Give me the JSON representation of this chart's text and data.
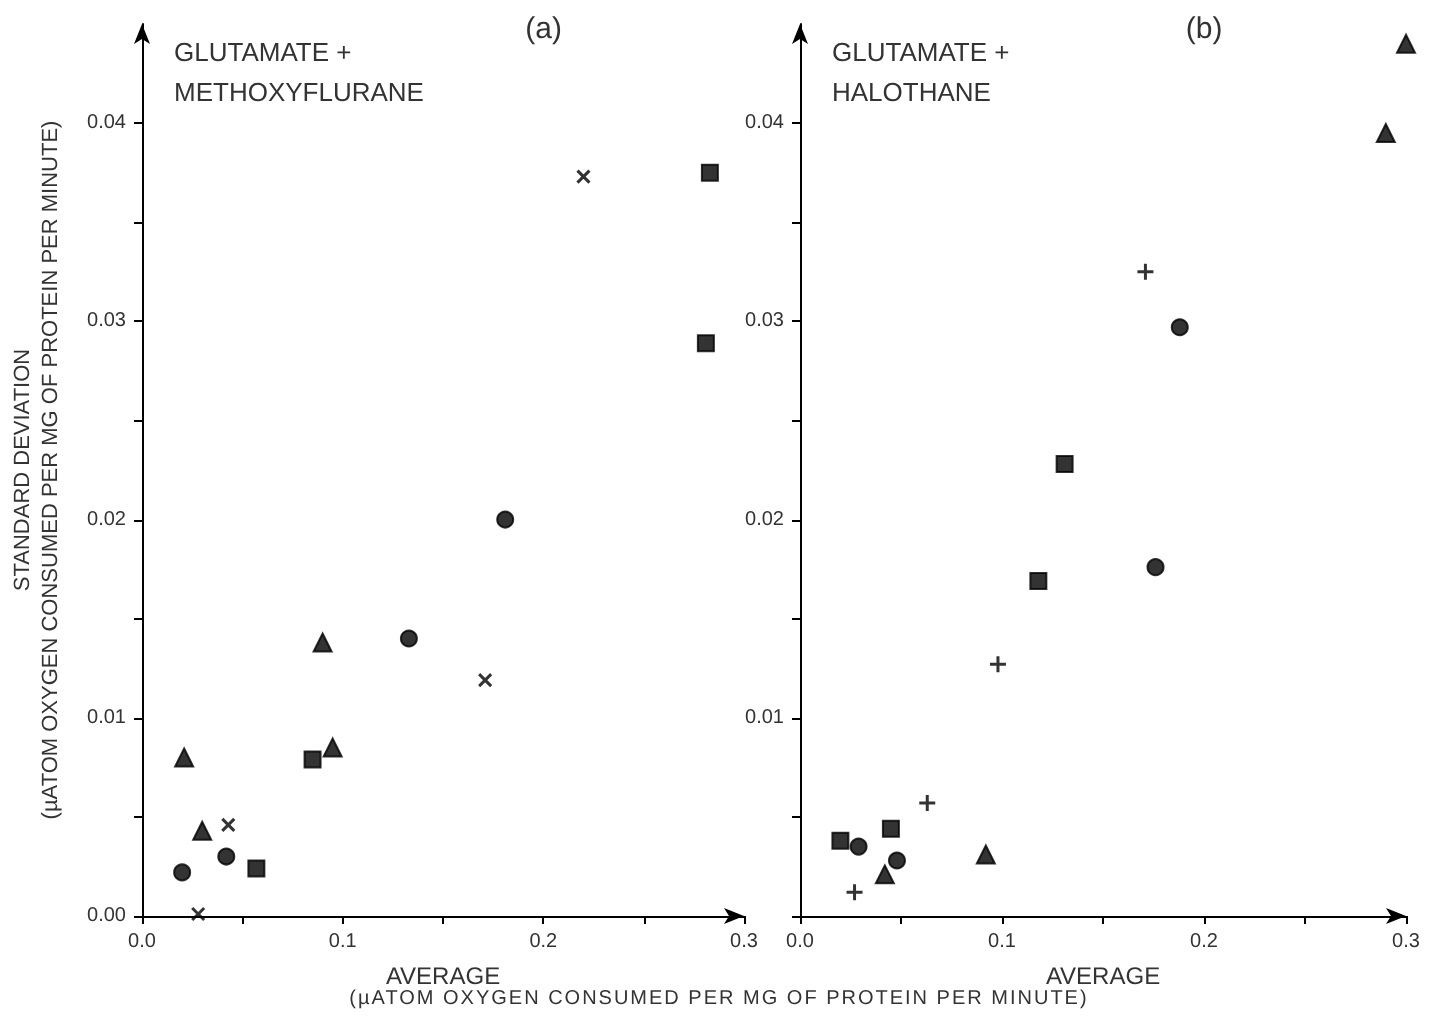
{
  "chart_data": [
    {
      "type": "scatter",
      "title": "(a)",
      "xlabel": "AVERAGE",
      "ylabel": "STANDARD DEVIATION\n(µATOM OXYGEN CONSUMED PER MG OF PROTEIN PER MINUTE)",
      "annotations": [
        "GLUTAMATE +\nMETHOXYFLURANE",
        "(µATOM OXYGEN CONSUMED PER MG OF PROTEIN PER MINUTE)"
      ],
      "xlim": [
        0,
        0.3
      ],
      "ylim": [
        0,
        0.045
      ],
      "grid": false,
      "xticks": [
        {
          "value": 0,
          "label": "0.0"
        },
        {
          "value": 0.05,
          "label": null
        },
        {
          "value": 0.1,
          "label": "0.1"
        },
        {
          "value": 0.15,
          "label": null
        },
        {
          "value": 0.2,
          "label": "0.2"
        },
        {
          "value": 0.25,
          "label": null
        },
        {
          "value": 0.3,
          "label": "0.3"
        }
      ],
      "yticks": [
        {
          "value": 0,
          "label": "0.00"
        },
        {
          "value": 0.005,
          "label": null
        },
        {
          "value": 0.01,
          "label": "0.01"
        },
        {
          "value": 0.015,
          "label": null
        },
        {
          "value": 0.02,
          "label": "0.02"
        },
        {
          "value": 0.025,
          "label": null
        },
        {
          "value": 0.03,
          "label": "0.03"
        },
        {
          "value": 0.035,
          "label": null
        },
        {
          "value": 0.04,
          "label": "0.04"
        }
      ],
      "series": [
        {
          "color": "#000000",
          "marker": "circle",
          "x": [
            0.02,
            0.042,
            0.133,
            0.181
          ],
          "values": [
            0.0022,
            0.003,
            0.014,
            0.02
          ]
        },
        {
          "color": "#000000",
          "marker": "triangle",
          "x": [
            0.021,
            0.03,
            0.09,
            0.095
          ],
          "values": [
            0.008,
            0.0043,
            0.0138,
            0.0085
          ]
        },
        {
          "color": "#000000",
          "marker": "square",
          "x": [
            0.057,
            0.085,
            0.283,
            0.281
          ],
          "values": [
            0.0024,
            0.0079,
            0.0375,
            0.0289
          ]
        },
        {
          "color": "#000000",
          "marker": "cross",
          "x": [
            0.028,
            0.043,
            0.171,
            0.22
          ],
          "values": [
            0.0001,
            0.0046,
            0.0119,
            0.0373
          ]
        }
      ]
    },
    {
      "type": "scatter",
      "title": "(b)",
      "xlabel": "AVERAGE",
      "annotations": [
        "GLUTAMATE +\nHALOTHANE"
      ],
      "xlim": [
        0,
        0.3
      ],
      "ylim": [
        0,
        0.045
      ],
      "grid": false,
      "xticks": [
        {
          "value": 0,
          "label": "0.0"
        },
        {
          "value": 0.05,
          "label": null
        },
        {
          "value": 0.1,
          "label": "0.1"
        },
        {
          "value": 0.15,
          "label": null
        },
        {
          "value": 0.2,
          "label": "0.2"
        },
        {
          "value": 0.25,
          "label": null
        },
        {
          "value": 0.3,
          "label": "0.3"
        }
      ],
      "yticks": [
        {
          "value": 0,
          "label": null
        },
        {
          "value": 0.005,
          "label": null
        },
        {
          "value": 0.01,
          "label": "0.01"
        },
        {
          "value": 0.015,
          "label": null
        },
        {
          "value": 0.02,
          "label": "0.02"
        },
        {
          "value": 0.025,
          "label": null
        },
        {
          "value": 0.03,
          "label": "0.03"
        },
        {
          "value": 0.035,
          "label": null
        },
        {
          "value": 0.04,
          "label": "0.04"
        }
      ],
      "series": [
        {
          "color": "#000000",
          "marker": "square",
          "x": [
            0.02,
            0.045,
            0.118,
            0.131
          ],
          "values": [
            0.0038,
            0.0044,
            0.0169,
            0.0228
          ]
        },
        {
          "color": "#000000",
          "marker": "circle",
          "x": [
            0.029,
            0.048,
            0.176,
            0.188
          ],
          "values": [
            0.0035,
            0.0028,
            0.0176,
            0.0297
          ]
        },
        {
          "color": "#000000",
          "marker": "triangle",
          "x": [
            0.042,
            0.092,
            0.29,
            0.3
          ],
          "values": [
            0.0021,
            0.0031,
            0.0395,
            0.044
          ]
        },
        {
          "color": "#000000",
          "marker": "plus",
          "x": [
            0.027,
            0.063,
            0.098,
            0.171
          ],
          "values": [
            0.0012,
            0.0057,
            0.0127,
            0.0325
          ]
        }
      ]
    }
  ]
}
